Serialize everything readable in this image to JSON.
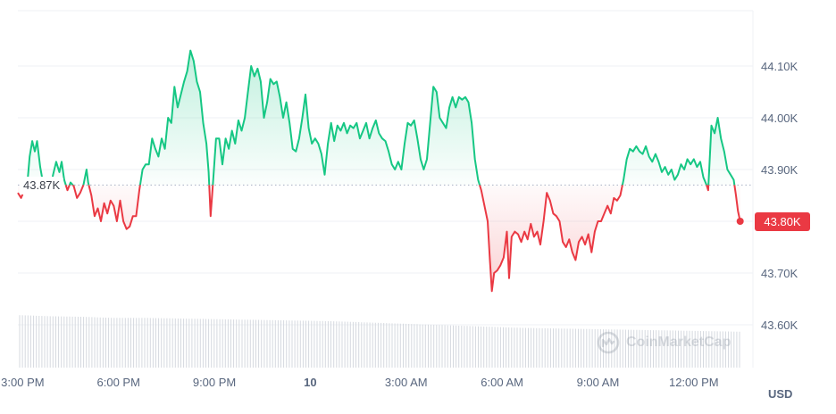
{
  "chart_data": {
    "type": "line",
    "xlabels": [
      "3:00 PM",
      "6:00 PM",
      "9:00 PM",
      "10",
      "3:00 AM",
      "6:00 AM",
      "9:00 AM",
      "12:00 PM"
    ],
    "x_start_hours": 14.85,
    "x_end_hours": 37.85,
    "yticks": [
      "43.60K",
      "43.70K",
      "43.80K",
      "43.90K",
      "44.00K",
      "44.10K"
    ],
    "ylim": [
      43520,
      44230
    ],
    "reference_price": 43870,
    "reference_label": "43.87K",
    "last_price": 43800,
    "last_price_label": "43.80K",
    "currency": "USD",
    "up_color": "#16c784",
    "down_color": "#ea3943",
    "points": [
      [
        14.85,
        43855
      ],
      [
        14.95,
        43845
      ],
      [
        15.05,
        43860
      ],
      [
        15.15,
        43875
      ],
      [
        15.22,
        43925
      ],
      [
        15.3,
        43955
      ],
      [
        15.38,
        43935
      ],
      [
        15.45,
        43955
      ],
      [
        15.55,
        43905
      ],
      [
        15.65,
        43870
      ],
      [
        15.75,
        43880
      ],
      [
        15.85,
        43855
      ],
      [
        15.95,
        43890
      ],
      [
        16.05,
        43915
      ],
      [
        16.15,
        43895
      ],
      [
        16.22,
        43915
      ],
      [
        16.3,
        43880
      ],
      [
        16.4,
        43860
      ],
      [
        16.5,
        43875
      ],
      [
        16.6,
        43868
      ],
      [
        16.7,
        43845
      ],
      [
        16.8,
        43855
      ],
      [
        16.9,
        43870
      ],
      [
        17.0,
        43900
      ],
      [
        17.05,
        43875
      ],
      [
        17.15,
        43850
      ],
      [
        17.25,
        43810
      ],
      [
        17.35,
        43825
      ],
      [
        17.45,
        43800
      ],
      [
        17.55,
        43835
      ],
      [
        17.65,
        43815
      ],
      [
        17.75,
        43840
      ],
      [
        17.85,
        43830
      ],
      [
        17.95,
        43800
      ],
      [
        18.05,
        43840
      ],
      [
        18.15,
        43800
      ],
      [
        18.25,
        43785
      ],
      [
        18.35,
        43790
      ],
      [
        18.45,
        43810
      ],
      [
        18.55,
        43810
      ],
      [
        18.65,
        43860
      ],
      [
        18.75,
        43900
      ],
      [
        18.85,
        43910
      ],
      [
        18.95,
        43910
      ],
      [
        19.05,
        43960
      ],
      [
        19.15,
        43940
      ],
      [
        19.25,
        43925
      ],
      [
        19.35,
        43960
      ],
      [
        19.45,
        43940
      ],
      [
        19.55,
        44000
      ],
      [
        19.65,
        43990
      ],
      [
        19.75,
        44060
      ],
      [
        19.85,
        44020
      ],
      [
        19.95,
        44045
      ],
      [
        20.05,
        44070
      ],
      [
        20.15,
        44090
      ],
      [
        20.25,
        44130
      ],
      [
        20.35,
        44110
      ],
      [
        20.45,
        44070
      ],
      [
        20.55,
        44050
      ],
      [
        20.65,
        43990
      ],
      [
        20.75,
        43950
      ],
      [
        20.82,
        43895
      ],
      [
        20.88,
        43810
      ],
      [
        20.95,
        43870
      ],
      [
        21.05,
        43960
      ],
      [
        21.15,
        43960
      ],
      [
        21.25,
        43910
      ],
      [
        21.35,
        43960
      ],
      [
        21.45,
        43940
      ],
      [
        21.55,
        43975
      ],
      [
        21.65,
        43950
      ],
      [
        21.75,
        43995
      ],
      [
        21.85,
        43975
      ],
      [
        21.95,
        44000
      ],
      [
        22.05,
        44050
      ],
      [
        22.15,
        44100
      ],
      [
        22.25,
        44080
      ],
      [
        22.35,
        44095
      ],
      [
        22.45,
        44070
      ],
      [
        22.55,
        44000
      ],
      [
        22.65,
        44030
      ],
      [
        22.75,
        44075
      ],
      [
        22.85,
        44065
      ],
      [
        22.95,
        44070
      ],
      [
        23.05,
        44040
      ],
      [
        23.15,
        44000
      ],
      [
        23.25,
        44030
      ],
      [
        23.35,
        43990
      ],
      [
        23.45,
        43940
      ],
      [
        23.55,
        43935
      ],
      [
        23.65,
        43960
      ],
      [
        23.75,
        44000
      ],
      [
        23.85,
        44045
      ],
      [
        23.95,
        43980
      ],
      [
        24.05,
        43950
      ],
      [
        24.15,
        43960
      ],
      [
        24.25,
        43950
      ],
      [
        24.35,
        43930
      ],
      [
        24.45,
        43890
      ],
      [
        24.55,
        43950
      ],
      [
        24.65,
        43990
      ],
      [
        24.75,
        43955
      ],
      [
        24.85,
        43985
      ],
      [
        24.95,
        43975
      ],
      [
        25.05,
        43990
      ],
      [
        25.15,
        43970
      ],
      [
        25.25,
        43985
      ],
      [
        25.35,
        43980
      ],
      [
        25.45,
        43990
      ],
      [
        25.55,
        43960
      ],
      [
        25.65,
        43975
      ],
      [
        25.75,
        43990
      ],
      [
        25.85,
        43960
      ],
      [
        25.95,
        43980
      ],
      [
        26.05,
        43995
      ],
      [
        26.15,
        43970
      ],
      [
        26.25,
        43960
      ],
      [
        26.35,
        43955
      ],
      [
        26.45,
        43935
      ],
      [
        26.55,
        43910
      ],
      [
        26.65,
        43900
      ],
      [
        26.75,
        43915
      ],
      [
        26.85,
        43900
      ],
      [
        26.95,
        43950
      ],
      [
        27.05,
        43990
      ],
      [
        27.15,
        43985
      ],
      [
        27.25,
        43995
      ],
      [
        27.35,
        43960
      ],
      [
        27.45,
        43920
      ],
      [
        27.55,
        43900
      ],
      [
        27.65,
        43920
      ],
      [
        27.75,
        43990
      ],
      [
        27.85,
        44060
      ],
      [
        27.95,
        44050
      ],
      [
        28.05,
        44000
      ],
      [
        28.15,
        43990
      ],
      [
        28.25,
        43980
      ],
      [
        28.35,
        44020
      ],
      [
        28.45,
        44040
      ],
      [
        28.55,
        44020
      ],
      [
        28.65,
        44040
      ],
      [
        28.75,
        44035
      ],
      [
        28.85,
        44040
      ],
      [
        28.95,
        44030
      ],
      [
        29.05,
        43990
      ],
      [
        29.15,
        43920
      ],
      [
        29.25,
        43880
      ],
      [
        29.35,
        43860
      ],
      [
        29.45,
        43830
      ],
      [
        29.55,
        43800
      ],
      [
        29.62,
        43725
      ],
      [
        29.68,
        43665
      ],
      [
        29.75,
        43700
      ],
      [
        29.85,
        43705
      ],
      [
        29.95,
        43715
      ],
      [
        30.05,
        43730
      ],
      [
        30.15,
        43780
      ],
      [
        30.22,
        43690
      ],
      [
        30.3,
        43770
      ],
      [
        30.4,
        43780
      ],
      [
        30.5,
        43775
      ],
      [
        30.6,
        43760
      ],
      [
        30.7,
        43780
      ],
      [
        30.8,
        43765
      ],
      [
        30.9,
        43795
      ],
      [
        31.0,
        43770
      ],
      [
        31.1,
        43780
      ],
      [
        31.2,
        43755
      ],
      [
        31.3,
        43800
      ],
      [
        31.4,
        43855
      ],
      [
        31.5,
        43840
      ],
      [
        31.6,
        43815
      ],
      [
        31.7,
        43810
      ],
      [
        31.8,
        43800
      ],
      [
        31.9,
        43760
      ],
      [
        32.0,
        43750
      ],
      [
        32.1,
        43765
      ],
      [
        32.2,
        43740
      ],
      [
        32.3,
        43725
      ],
      [
        32.4,
        43760
      ],
      [
        32.5,
        43770
      ],
      [
        32.6,
        43755
      ],
      [
        32.7,
        43775
      ],
      [
        32.8,
        43740
      ],
      [
        32.9,
        43780
      ],
      [
        33.0,
        43800
      ],
      [
        33.1,
        43800
      ],
      [
        33.2,
        43815
      ],
      [
        33.3,
        43830
      ],
      [
        33.4,
        43815
      ],
      [
        33.5,
        43845
      ],
      [
        33.6,
        43840
      ],
      [
        33.7,
        43850
      ],
      [
        33.8,
        43880
      ],
      [
        33.9,
        43920
      ],
      [
        34.0,
        43940
      ],
      [
        34.1,
        43935
      ],
      [
        34.2,
        43945
      ],
      [
        34.3,
        43935
      ],
      [
        34.4,
        43930
      ],
      [
        34.5,
        43945
      ],
      [
        34.6,
        43925
      ],
      [
        34.7,
        43915
      ],
      [
        34.8,
        43930
      ],
      [
        34.9,
        43915
      ],
      [
        35.0,
        43895
      ],
      [
        35.1,
        43905
      ],
      [
        35.2,
        43890
      ],
      [
        35.3,
        43900
      ],
      [
        35.4,
        43880
      ],
      [
        35.5,
        43890
      ],
      [
        35.6,
        43910
      ],
      [
        35.7,
        43900
      ],
      [
        35.8,
        43920
      ],
      [
        35.9,
        43910
      ],
      [
        36.0,
        43920
      ],
      [
        36.1,
        43905
      ],
      [
        36.2,
        43915
      ],
      [
        36.3,
        43885
      ],
      [
        36.4,
        43870
      ],
      [
        36.45,
        43860
      ],
      [
        36.55,
        43985
      ],
      [
        36.65,
        43970
      ],
      [
        36.75,
        44000
      ],
      [
        36.85,
        43960
      ],
      [
        36.95,
        43935
      ],
      [
        37.05,
        43900
      ],
      [
        37.15,
        43890
      ],
      [
        37.25,
        43880
      ],
      [
        37.32,
        43850
      ],
      [
        37.38,
        43820
      ],
      [
        37.45,
        43800
      ]
    ],
    "volume": [
      0.95,
      0.93,
      0.92,
      0.9,
      0.9,
      0.89,
      0.88,
      0.87,
      0.86,
      0.85,
      0.84,
      0.82,
      0.8,
      0.78,
      0.76,
      0.74,
      0.72,
      0.71,
      0.7,
      0.69,
      0.68,
      0.67,
      0.66,
      0.65
    ]
  },
  "watermark_text": "CoinMarketCap"
}
